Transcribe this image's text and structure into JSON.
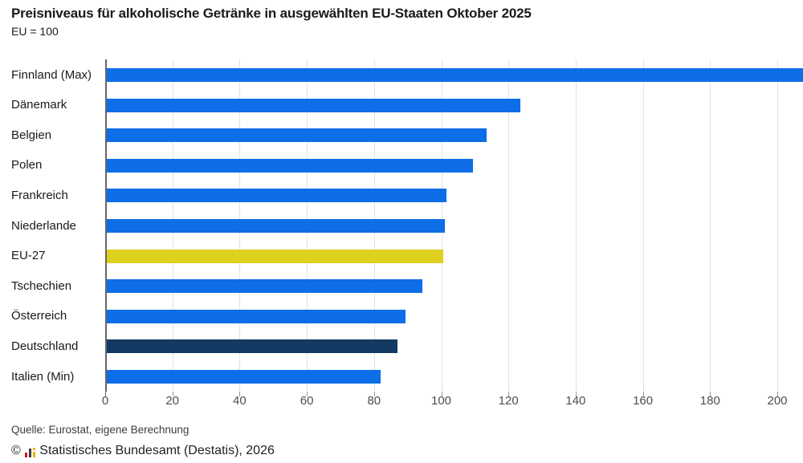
{
  "header": {
    "title": "Preisniveaus für alkoholische Getränke in ausgewählten EU-Staaten Oktober 2025",
    "subtitle": "EU = 100"
  },
  "footer": {
    "source": "Quelle: Eurostat, eigene Berechnung",
    "copyright_symbol": "©",
    "publisher": "Statistisches Bundesamt (Destatis), 2026",
    "logo": "destatis-bar-chart-logo"
  },
  "colors": {
    "bar_default": "#0d6ee8",
    "bar_eu_highlight": "#dfcf1e",
    "bar_germany_highlight": "#123a63",
    "axis_line": "#666666",
    "gridline": "#e2e2e2",
    "tick_stub": "#9a9a9a",
    "tick_label": "#4d4d4d",
    "category_label": "#1a1a1a",
    "title": "#1a1a1a",
    "logo_red": "#e30613",
    "logo_black": "#3a3a3a",
    "logo_gold": "#f0b400"
  },
  "chart_data": {
    "type": "bar",
    "orientation": "horizontal",
    "title": "Preisniveaus für alkoholische Getränke in ausgewählten EU-Staaten Oktober 2025",
    "subtitle": "EU = 100",
    "xlabel": "",
    "ylabel": "",
    "xlim": [
      0,
      207
    ],
    "xticks": [
      0,
      20,
      40,
      60,
      80,
      100,
      120,
      140,
      160,
      180,
      200
    ],
    "grid": "vertical-light-gridlines",
    "legend": "none",
    "categories": [
      "Finnland (Max)",
      "Dänemark",
      "Belgien",
      "Polen",
      "Frankreich",
      "Niederlande",
      "EU-27",
      "Tschechien",
      "Österreich",
      "Deutschland",
      "Italien (Min)"
    ],
    "values": [
      213,
      123,
      113,
      109,
      101,
      100.5,
      100,
      94,
      89,
      86.5,
      81.5
    ],
    "bar_color_roles": [
      "default",
      "default",
      "default",
      "default",
      "default",
      "default",
      "eu-highlight",
      "default",
      "default",
      "germany-highlight",
      "default"
    ],
    "notes": "Finnland (Max) bar is clipped at the right edge of the chart; value exceeds visible axis range."
  }
}
